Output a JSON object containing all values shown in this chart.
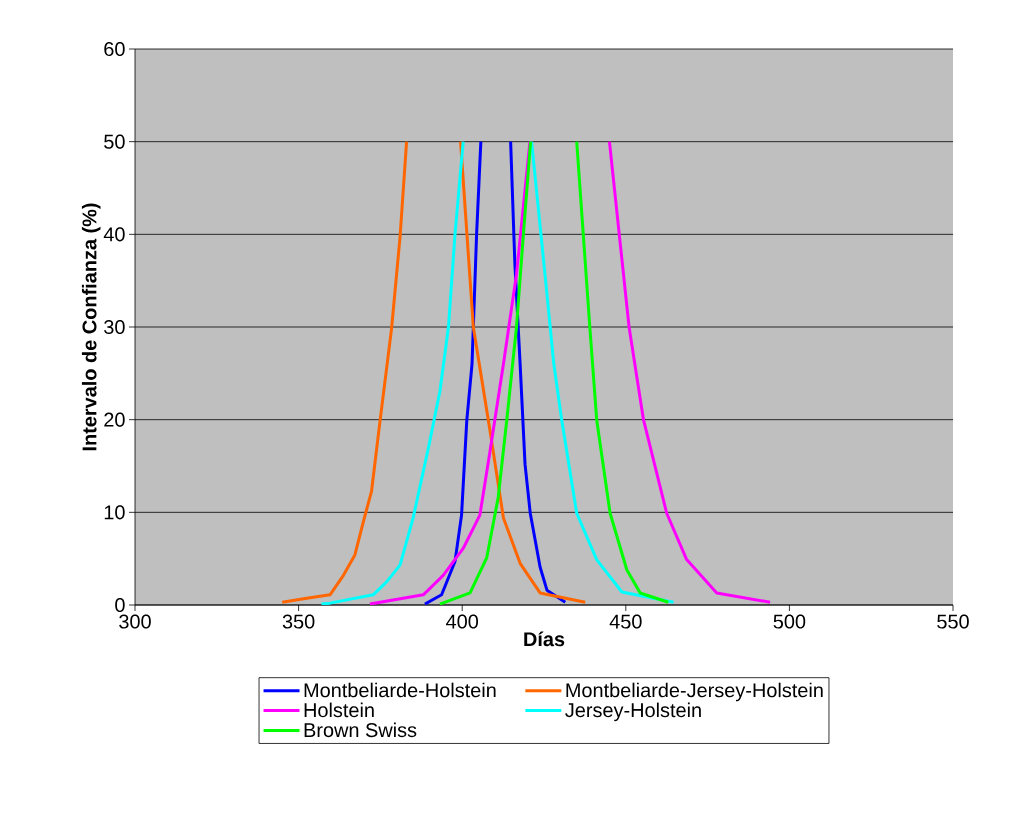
{
  "chart_data": {
    "type": "line",
    "xlabel": "Días",
    "ylabel": "Intervalo de Confianza (%)",
    "xlim": [
      300,
      550
    ],
    "xticks": [
      300,
      350,
      400,
      450,
      500,
      550
    ],
    "ylim": [
      0,
      60
    ],
    "yticks": [
      0,
      10,
      20,
      30,
      40,
      50,
      60
    ],
    "grid": "y",
    "legend": "bottom",
    "marker": "none",
    "line_style": "solid",
    "series": [
      {
        "name": "Montbeliarde-Holstein",
        "color": "#0000ff",
        "x": [
          388.6,
          393.7,
          397.8,
          399.8,
          401.4,
          403,
          404.4,
          405.7,
          410,
          414.8,
          416.1,
          417.7,
          419.2,
          420.8,
          423.8,
          425.9,
          431.5
        ],
        "values": [
          0.1,
          1.1,
          4.7,
          9.7,
          19.9,
          26,
          40,
          50,
          null,
          50,
          36.8,
          26,
          15.2,
          9.9,
          4.1,
          1.6,
          0.3
        ]
      },
      {
        "name": "Montbeliarde-Jersey-Holstein",
        "color": "#ff6600",
        "x": [
          345,
          352,
          359.6,
          363.7,
          367.2,
          369.8,
          372.3,
          374.9,
          378.4,
          381,
          383,
          391,
          399.5,
          403.4,
          408.5,
          412.6,
          417.7,
          423.8,
          437.6
        ],
        "values": [
          0.3,
          0.7,
          1.1,
          3.2,
          5.4,
          9,
          12.3,
          19.9,
          29.8,
          39.7,
          50,
          null,
          50,
          30,
          18.8,
          9.4,
          4.5,
          1.3,
          0.3
        ]
      },
      {
        "name": "Holstein",
        "color": "#ff00ff",
        "x": [
          371.8,
          388.1,
          394.2,
          400.3,
          405.4,
          408.5,
          412.6,
          416.6,
          420.7,
          433,
          445,
          448,
          451,
          455.4,
          462.5,
          468.6,
          477.8,
          494.1
        ],
        "values": [
          0.1,
          1.1,
          3.2,
          6.1,
          9.7,
          16.6,
          26,
          35.7,
          50,
          null,
          50,
          40,
          30,
          20,
          9.9,
          4.9,
          1.3,
          0.3
        ]
      },
      {
        "name": "Jersey-Holstein",
        "color": "#00ffff",
        "x": [
          357,
          359.6,
          372.8,
          376.9,
          381,
          385,
          389.7,
          393.2,
          395.8,
          397.8,
          400.3,
          410,
          421.2,
          425.5,
          428,
          430.4,
          435,
          441.1,
          448.8,
          464.6
        ],
        "values": [
          0.1,
          0.2,
          1.1,
          2.5,
          4.3,
          9.4,
          17,
          23.1,
          30,
          40,
          50,
          null,
          50,
          35,
          26,
          20,
          9.9,
          4.9,
          1.4,
          0.3
        ]
      },
      {
        "name": "Brown Swiss",
        "color": "#00ff00",
        "x": [
          393.2,
          402.4,
          407.5,
          411,
          413.6,
          416.6,
          418.7,
          420.9,
          428,
          435,
          437,
          439,
          441.1,
          445.2,
          450.3,
          454.4,
          463
        ],
        "values": [
          0.1,
          1.3,
          5.1,
          11.6,
          19.9,
          30,
          40,
          50,
          null,
          50,
          40,
          30,
          20,
          9.9,
          3.8,
          1.3,
          0.3
        ]
      }
    ]
  }
}
